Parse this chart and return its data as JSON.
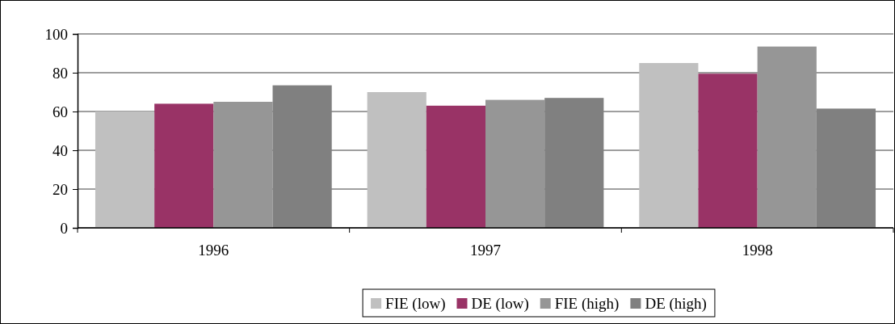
{
  "chart_data": {
    "type": "bar",
    "categories": [
      "1996",
      "1997",
      "1998"
    ],
    "series": [
      {
        "name": "FIE (low)",
        "color": "#c0c0c0",
        "values": [
          60,
          70,
          85
        ]
      },
      {
        "name": "DE (low)",
        "color": "#993366",
        "values": [
          64,
          63,
          79.5
        ]
      },
      {
        "name": "FIE (high)",
        "color": "#969696",
        "values": [
          65,
          66,
          93.5
        ]
      },
      {
        "name": "DE (high)",
        "color": "#808080",
        "values": [
          73.5,
          67,
          61.5
        ]
      }
    ],
    "ylim": [
      0,
      100
    ],
    "yticks": [
      0,
      20,
      40,
      60,
      80,
      100
    ],
    "grid": "y",
    "legend": "bottom"
  }
}
